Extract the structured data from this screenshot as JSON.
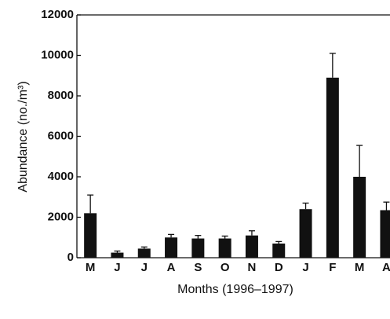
{
  "chart_data": {
    "type": "bar",
    "xlabel": "Months (1996–1997)",
    "ylabel": "Abundance (no./m³)",
    "categories": [
      "M",
      "J",
      "J",
      "A",
      "S",
      "O",
      "N",
      "D",
      "J",
      "F",
      "M",
      "A"
    ],
    "values": [
      2200,
      250,
      450,
      1000,
      950,
      950,
      1100,
      700,
      2400,
      8900,
      4000,
      2350
    ],
    "errors": [
      900,
      80,
      80,
      150,
      150,
      120,
      230,
      100,
      300,
      1200,
      1550,
      400
    ],
    "color": "#111111",
    "ylim": [
      0,
      12000
    ],
    "yticks": [
      0,
      2000,
      4000,
      6000,
      8000,
      10000,
      12000
    ],
    "grid": false
  }
}
